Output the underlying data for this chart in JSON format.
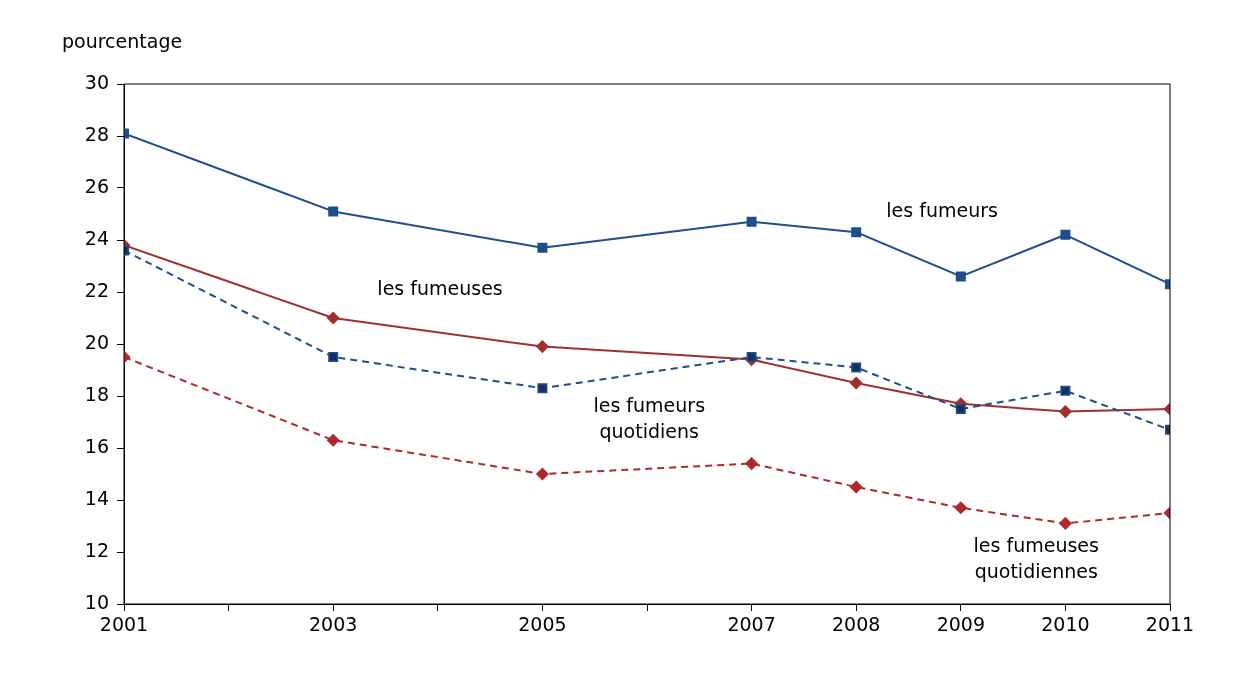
{
  "chart_data": {
    "type": "line",
    "ylabel": "pourcentage",
    "x": [
      2001,
      2003,
      2005,
      2007,
      2008,
      2009,
      2010,
      2011
    ],
    "xlim": [
      2001,
      2011
    ],
    "xticks": [
      2001,
      {
        "value": 2002,
        "label": null
      },
      2003,
      {
        "value": 2004,
        "label": null
      },
      2005,
      {
        "value": 2006,
        "label": null
      },
      2007,
      2008,
      2009,
      2010,
      2011
    ],
    "ylim": [
      10,
      30
    ],
    "yticks": [
      10,
      12,
      14,
      16,
      18,
      20,
      22,
      24,
      26,
      28,
      30
    ],
    "grid": false,
    "legend": false,
    "series": [
      {
        "name": "les fumeurs",
        "color": "#1f4e8c",
        "marker": "square",
        "line_style": "solid",
        "values": [
          28.1,
          25.1,
          23.7,
          24.7,
          24.3,
          22.6,
          24.2,
          22.3
        ]
      },
      {
        "name": "les fumeuses",
        "color": "#a0302e",
        "marker": "diamond",
        "line_style": "solid",
        "values": [
          23.8,
          21.0,
          19.9,
          19.4,
          18.5,
          17.7,
          17.4,
          17.5
        ]
      },
      {
        "name": "les fumeurs quotidiens",
        "color": "#1f4e8c",
        "marker": "square",
        "line_style": "dashed",
        "values": [
          23.6,
          19.5,
          18.3,
          19.5,
          19.1,
          17.5,
          18.2,
          16.7
        ]
      },
      {
        "name": "les fumeuses quotidiennes",
        "color": "#b0282c",
        "marker": "diamond",
        "line_style": "dashed",
        "values": [
          19.5,
          16.3,
          15.0,
          15.4,
          14.5,
          13.7,
          13.1,
          13.5
        ]
      }
    ]
  }
}
